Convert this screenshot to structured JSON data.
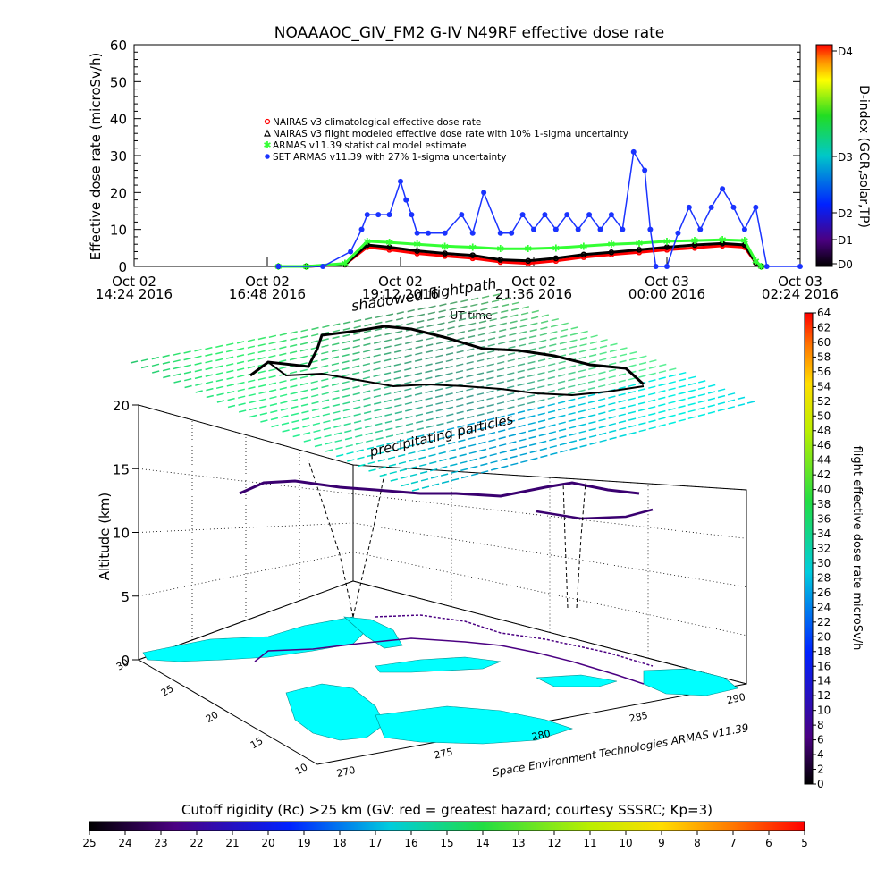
{
  "chart_data": [
    {
      "type": "scatter",
      "title": "NOAAAOC_GIV_FM2 G-IV    N49RF  effective dose rate",
      "xlabel": "UT time",
      "ylabel": "Effective dose rate (microSv/h)",
      "ylim": [
        0,
        60
      ],
      "yticks": [
        "0",
        "10",
        "20",
        "30",
        "40",
        "50",
        "60"
      ],
      "xticks": [
        {
          "l1": "Oct 02",
          "l2": "14:24 2016"
        },
        {
          "l1": "Oct 02",
          "l2": "16:48 2016"
        },
        {
          "l1": "Oct 02",
          "l2": "19:12 2016"
        },
        {
          "l1": "Oct 02",
          "l2": "21:36 2016"
        },
        {
          "l1": "Oct 03",
          "l2": "00:00 2016"
        },
        {
          "l1": "Oct 03",
          "l2": "02:24 2016"
        }
      ],
      "xlim_hours": [
        14.4,
        26.4
      ],
      "legend_position": "upper-left",
      "legend": [
        "NAIRAS v3 climatological effective dose rate",
        "NAIRAS v3 flight modeled effective dose rate with 10% 1-sigma uncertainty",
        "ARMAS v11.39 statistical model estimate",
        "SET ARMAS v11.39 with 27% 1-sigma uncertainty"
      ],
      "series": [
        {
          "color": "#ff0000",
          "x": [
            17.0,
            17.5,
            18.2,
            18.6,
            19.0,
            19.5,
            20.0,
            20.5,
            21.0,
            21.5,
            22.0,
            22.5,
            23.0,
            23.5,
            24.0,
            24.5,
            25.0,
            25.4,
            25.6,
            25.7
          ],
          "values": [
            0,
            0,
            0.5,
            5.2,
            4.5,
            3.5,
            2.8,
            2.2,
            1.2,
            0.8,
            1.5,
            2.5,
            3.2,
            3.8,
            4.5,
            5.0,
            5.6,
            5.2,
            1.0,
            0
          ]
        },
        {
          "color": "#000000",
          "x": [
            17.0,
            17.5,
            18.2,
            18.6,
            19.0,
            19.5,
            20.0,
            20.5,
            21.0,
            21.5,
            22.0,
            22.5,
            23.0,
            23.5,
            24.0,
            24.5,
            25.0,
            25.4,
            25.6,
            25.7
          ],
          "values": [
            0,
            0,
            0.5,
            5.8,
            5.2,
            4.2,
            3.5,
            3.0,
            1.8,
            1.5,
            2.2,
            3.2,
            3.8,
            4.5,
            5.2,
            5.8,
            6.2,
            5.8,
            1.0,
            0
          ]
        },
        {
          "color": "#33ff33",
          "x": [
            17.0,
            17.5,
            18.2,
            18.6,
            19.0,
            19.5,
            20.0,
            20.5,
            21.0,
            21.5,
            22.0,
            22.5,
            23.0,
            23.5,
            24.0,
            24.5,
            25.0,
            25.4,
            25.6,
            25.7
          ],
          "values": [
            0,
            0,
            0.8,
            6.8,
            6.5,
            6.0,
            5.5,
            5.2,
            4.8,
            4.8,
            5.0,
            5.5,
            6.0,
            6.3,
            6.8,
            7.0,
            7.2,
            7.0,
            1.5,
            0
          ]
        },
        {
          "color": "#1a33ff",
          "x": [
            17.0,
            17.8,
            18.3,
            18.5,
            18.6,
            18.8,
            19.0,
            19.2,
            19.3,
            19.4,
            19.5,
            19.7,
            20.0,
            20.3,
            20.5,
            20.7,
            21.0,
            21.2,
            21.4,
            21.6,
            21.8,
            22.0,
            22.2,
            22.4,
            22.6,
            22.8,
            23.0,
            23.2,
            23.4,
            23.6,
            23.7,
            23.8,
            24.0,
            24.2,
            24.4,
            24.6,
            24.8,
            25.0,
            25.2,
            25.4,
            25.6,
            25.8,
            26.4
          ],
          "values": [
            0,
            0,
            4,
            10,
            14,
            14,
            14,
            23,
            18,
            14,
            9,
            9,
            9,
            14,
            9,
            20,
            9,
            9,
            14,
            10,
            14,
            10,
            14,
            10,
            14,
            10,
            14,
            10,
            31,
            26,
            10,
            0,
            0,
            9,
            16,
            10,
            16,
            21,
            16,
            10,
            16,
            0,
            0
          ]
        }
      ],
      "colorbar": {
        "label": "D-index (GCR,solar,TP)",
        "ticks": [
          "D0",
          "D1",
          "D2",
          "D3",
          "D4"
        ]
      }
    },
    {
      "type": "scatter",
      "xlabel": "",
      "ylabel": "Altitude (km)",
      "zticks": [
        "0",
        "5",
        "10",
        "15",
        "20"
      ],
      "lat_ticks": [
        "10",
        "15",
        "20",
        "25",
        "30"
      ],
      "lon_ticks": [
        "270",
        "275",
        "280",
        "285",
        "290"
      ],
      "annotations": [
        "shadowed flightpath",
        "precipitating particles"
      ],
      "credit": "Space Environment Technologies ARMAS v11.39",
      "colorbar_right": {
        "label": "flight effective dose rate microSv/h",
        "ticks": [
          "0",
          "2",
          "4",
          "6",
          "8",
          "10",
          "12",
          "14",
          "16",
          "18",
          "20",
          "22",
          "24",
          "26",
          "28",
          "30",
          "32",
          "34",
          "36",
          "38",
          "40",
          "42",
          "44",
          "46",
          "48",
          "50",
          "52",
          "54",
          "56",
          "58",
          "60",
          "62",
          "64"
        ]
      },
      "colorbar_bottom": {
        "title": "Cutoff rigidity (Rc) >25 km (GV: red = greatest hazard; courtesy SSSRC; Kp=3)",
        "ticks": [
          "25",
          "24",
          "23",
          "22",
          "21",
          "20",
          "19",
          "18",
          "17",
          "16",
          "15",
          "14",
          "13",
          "12",
          "11",
          "10",
          "9",
          "8",
          "7",
          "6",
          "5"
        ]
      }
    }
  ]
}
